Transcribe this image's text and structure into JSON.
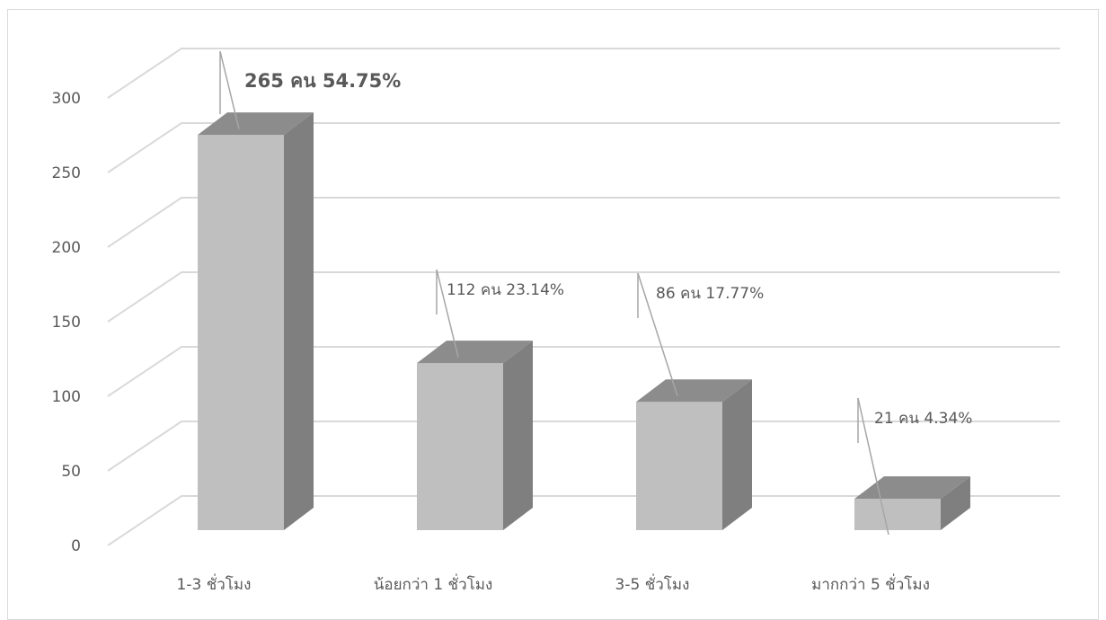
{
  "chart_data": {
    "type": "bar",
    "style": "3d-column",
    "categories": [
      "1-3 ชั่วโมง",
      "น้อยกว่า 1 ชั่วโมง",
      "3-5 ชั่วโมง",
      "มากกว่า 5 ชั่วโมง"
    ],
    "values": [
      265,
      112,
      86,
      21
    ],
    "data_labels": [
      "265 คน 54.75%",
      "112 คน 23.14%",
      "86 คน 17.77%",
      "21 คน 4.34%"
    ],
    "yticks": [
      "0",
      "50",
      "100",
      "150",
      "200",
      "250",
      "300"
    ],
    "ylim": [
      0,
      300
    ],
    "grid": true,
    "legend": "none",
    "colors": {
      "front": "#bfbfbf",
      "side": "#7f7f7f",
      "top": "#8c8c8c",
      "grid": "#d9d9d9",
      "text": "#595959"
    }
  }
}
